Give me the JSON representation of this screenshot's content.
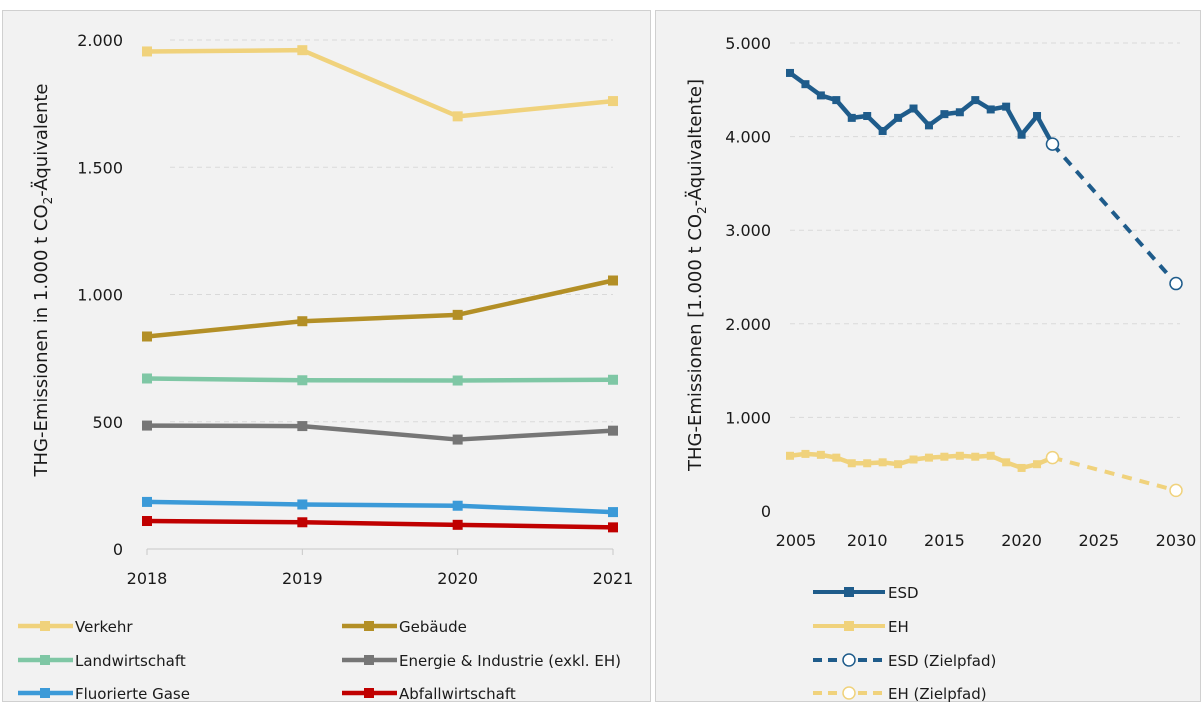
{
  "chart_data": [
    {
      "type": "line",
      "ylabel": "THG-Emissionen in 1.000 t CO₂-Äquivalente",
      "ylabel_parts": [
        "THG-Emissionen in 1.000 t CO",
        "2",
        "-Äquivalente"
      ],
      "categories": [
        "2018",
        "2019",
        "2020",
        "2021"
      ],
      "ylim": [
        0,
        2000
      ],
      "yticks": [
        0,
        500,
        1000,
        1500,
        2000
      ],
      "ytick_labels": [
        "0",
        "500",
        "1.000",
        "1.500",
        "2.000"
      ],
      "grid": true,
      "legend_position": "bottom",
      "series": [
        {
          "name": "Verkehr",
          "color": "#f0d27c",
          "values": [
            1955,
            1960,
            1700,
            1760
          ]
        },
        {
          "name": "Gebäude",
          "color": "#b38f26",
          "values": [
            835,
            895,
            920,
            1055
          ]
        },
        {
          "name": "Landwirtschaft",
          "color": "#7fc7a5",
          "values": [
            670,
            663,
            662,
            665
          ]
        },
        {
          "name": "Energie & Industrie (exkl. EH)",
          "color": "#767676",
          "values": [
            485,
            483,
            430,
            465
          ]
        },
        {
          "name": "Fluorierte Gase",
          "color": "#3b9ad8",
          "values": [
            185,
            175,
            170,
            145
          ]
        },
        {
          "name": "Abfallwirtschaft",
          "color": "#c00000",
          "values": [
            110,
            105,
            95,
            85
          ]
        }
      ]
    },
    {
      "type": "line",
      "ylabel": "THG-Emissionen [1.000 t CO₂-Äquivaltente]",
      "ylabel_parts": [
        "THG-Emissionen [1.000 t CO",
        "2",
        "-Äquivaltente]"
      ],
      "xlim": [
        2005,
        2030
      ],
      "xticks": [
        2005,
        2010,
        2015,
        2020,
        2025,
        2030
      ],
      "xtick_labels": [
        "2005",
        "2010",
        "2015",
        "2020",
        "2025",
        "2030"
      ],
      "ylim": [
        0,
        5000
      ],
      "yticks": [
        0,
        1000,
        2000,
        3000,
        4000,
        5000
      ],
      "ytick_labels": [
        "0",
        "1.000",
        "2.000",
        "3.000",
        "4.000",
        "5.000"
      ],
      "grid": true,
      "legend_position": "bottom",
      "series": [
        {
          "name": "ESD",
          "color": "#1f5c8b",
          "style": "solid",
          "x": [
            2005,
            2006,
            2007,
            2008,
            2009,
            2010,
            2011,
            2012,
            2013,
            2014,
            2015,
            2016,
            2017,
            2018,
            2019,
            2020,
            2021,
            2022
          ],
          "y": [
            4680,
            4560,
            4440,
            4390,
            4200,
            4220,
            4060,
            4200,
            4300,
            4120,
            4240,
            4260,
            4390,
            4290,
            4320,
            4020,
            4220,
            3920
          ]
        },
        {
          "name": "EH",
          "color": "#f0d27c",
          "style": "solid",
          "x": [
            2005,
            2006,
            2007,
            2008,
            2009,
            2010,
            2011,
            2012,
            2013,
            2014,
            2015,
            2016,
            2017,
            2018,
            2019,
            2020,
            2021,
            2022
          ],
          "y": [
            590,
            610,
            600,
            570,
            510,
            510,
            520,
            500,
            550,
            570,
            580,
            590,
            580,
            590,
            520,
            460,
            500,
            570
          ]
        },
        {
          "name": "ESD (Zielpfad)",
          "color": "#1f5c8b",
          "style": "dashed",
          "x": [
            2022,
            2030
          ],
          "y": [
            3920,
            2430
          ]
        },
        {
          "name": "EH (Zielpfad)",
          "color": "#f0d27c",
          "style": "dashed",
          "x": [
            2022,
            2030
          ],
          "y": [
            570,
            220
          ]
        }
      ]
    }
  ]
}
